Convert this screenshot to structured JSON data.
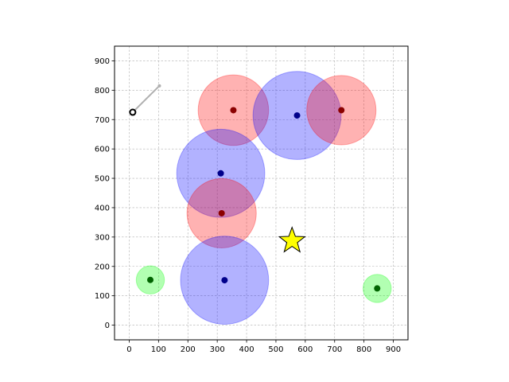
{
  "chart_data": {
    "type": "scatter",
    "title": "",
    "xlabel": "",
    "ylabel": "",
    "xlim": [
      -50,
      950
    ],
    "ylim": [
      -50,
      950
    ],
    "xticks": [
      0,
      100,
      200,
      300,
      400,
      500,
      600,
      700,
      800,
      900
    ],
    "yticks": [
      0,
      100,
      200,
      300,
      400,
      500,
      600,
      700,
      800,
      900
    ],
    "grid": true,
    "circles": [
      {
        "kind": "red",
        "x": 355,
        "y": 732,
        "r": 120,
        "fill": "#ff0000",
        "center": "#8b0000"
      },
      {
        "kind": "blue",
        "x": 572,
        "y": 714,
        "r": 150,
        "fill": "#0000ff",
        "center": "#00008b"
      },
      {
        "kind": "red",
        "x": 723,
        "y": 732,
        "r": 118,
        "fill": "#ff0000",
        "center": "#8b0000"
      },
      {
        "kind": "blue",
        "x": 312,
        "y": 517,
        "r": 150,
        "fill": "#0000ff",
        "center": "#00008b"
      },
      {
        "kind": "red",
        "x": 315,
        "y": 381,
        "r": 118,
        "fill": "#ff0000",
        "center": "#8b0000"
      },
      {
        "kind": "blue",
        "x": 325,
        "y": 153,
        "r": 150,
        "fill": "#0000ff",
        "center": "#00008b"
      },
      {
        "kind": "green",
        "x": 72,
        "y": 154,
        "r": 48,
        "fill": "#00ff00",
        "center": "#006400"
      },
      {
        "kind": "green",
        "x": 845,
        "y": 125,
        "r": 48,
        "fill": "#00ff00",
        "center": "#006400"
      }
    ],
    "agent": {
      "x": 12,
      "y": 725,
      "heading_end": [
        103,
        815
      ]
    },
    "star": {
      "x": 555,
      "y": 287,
      "color": "#ffff00"
    }
  }
}
